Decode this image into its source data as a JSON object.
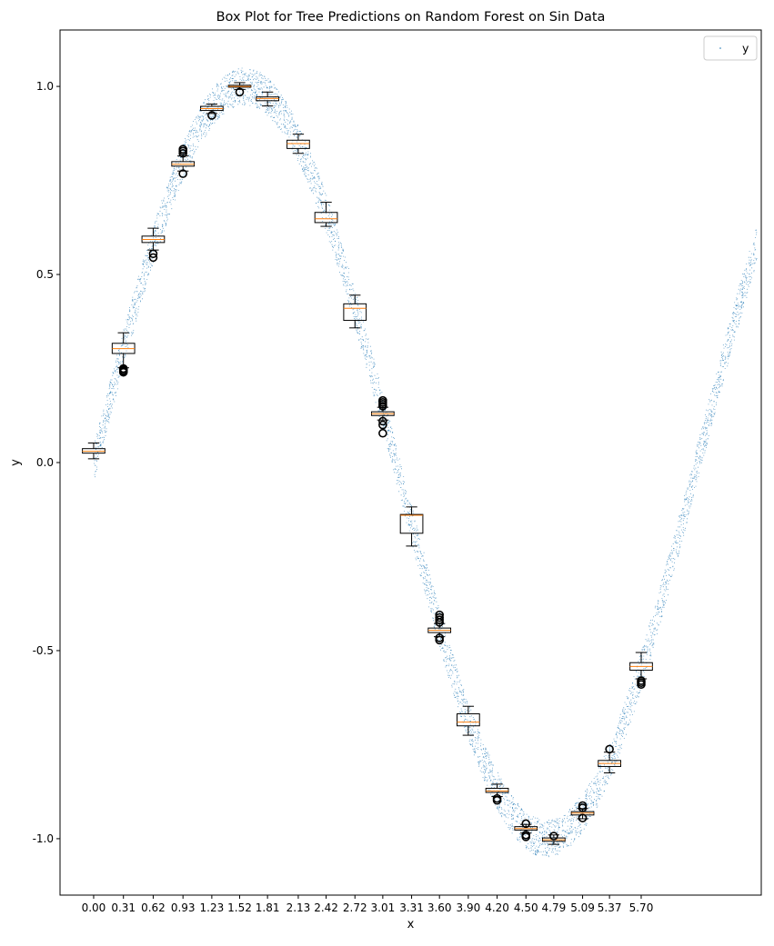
{
  "chart_data": {
    "type": "box",
    "title": "Box Plot for Tree Predictions on Random Forest on Sin Data",
    "xlabel": "x",
    "ylabel": "y",
    "xlim": [
      -0.35,
      6.95
    ],
    "ylim": [
      -1.15,
      1.15
    ],
    "y_ticks": [
      1.0,
      0.5,
      0.0,
      -0.5,
      -1.0
    ],
    "y_tick_labels": [
      "1.0",
      "0.5",
      "0.0",
      "-0.5",
      "-1.0"
    ],
    "x_tick_labels": [
      "0.00",
      "0.31",
      "0.62",
      "0.93",
      "1.23",
      "1.52",
      "1.81",
      "2.13",
      "2.42",
      "2.72",
      "3.01",
      "3.31",
      "3.60",
      "3.90",
      "4.20",
      "4.50",
      "4.79",
      "5.09",
      "5.37",
      "5.70"
    ],
    "grid": false,
    "legend": {
      "position": "top-right",
      "entries": [
        "y"
      ]
    },
    "colors": {
      "scatter": "#1f77b4",
      "median": "#ff7f0e",
      "box": "#000000"
    },
    "scatter_series": {
      "name": "y",
      "function": "sin(x)",
      "x_range": [
        0,
        6.9
      ],
      "noise_band": 0.05,
      "n_points": 5000
    },
    "boxes": [
      {
        "x": 0.0,
        "q1": 0.025,
        "median": 0.03,
        "q3": 0.037,
        "whisker_low": 0.01,
        "whisker_high": 0.052,
        "outliers": []
      },
      {
        "x": 0.31,
        "q1": 0.29,
        "median": 0.303,
        "q3": 0.317,
        "whisker_low": 0.252,
        "whisker_high": 0.345,
        "outliers": [
          0.24,
          0.243,
          0.246,
          0.25
        ]
      },
      {
        "x": 0.62,
        "q1": 0.585,
        "median": 0.593,
        "q3": 0.602,
        "whisker_low": 0.565,
        "whisker_high": 0.623,
        "outliers": [
          0.545,
          0.555
        ]
      },
      {
        "x": 0.93,
        "q1": 0.788,
        "median": 0.793,
        "q3": 0.8,
        "whisker_low": 0.775,
        "whisker_high": 0.815,
        "outliers": [
          0.768,
          0.822,
          0.828,
          0.833
        ]
      },
      {
        "x": 1.23,
        "q1": 0.936,
        "median": 0.941,
        "q3": 0.947,
        "whisker_low": 0.928,
        "whisker_high": 0.953,
        "outliers": [
          0.923
        ]
      },
      {
        "x": 1.52,
        "q1": 0.998,
        "median": 1.0,
        "q3": 1.003,
        "whisker_low": 0.992,
        "whisker_high": 1.01,
        "outliers": [
          0.985
        ]
      },
      {
        "x": 1.81,
        "q1": 0.962,
        "median": 0.968,
        "q3": 0.972,
        "whisker_low": 0.948,
        "whisker_high": 0.985,
        "outliers": []
      },
      {
        "x": 2.13,
        "q1": 0.835,
        "median": 0.848,
        "q3": 0.857,
        "whisker_low": 0.822,
        "whisker_high": 0.873,
        "outliers": []
      },
      {
        "x": 2.42,
        "q1": 0.638,
        "median": 0.648,
        "q3": 0.665,
        "whisker_low": 0.628,
        "whisker_high": 0.692,
        "outliers": []
      },
      {
        "x": 2.72,
        "q1": 0.378,
        "median": 0.41,
        "q3": 0.422,
        "whisker_low": 0.358,
        "whisker_high": 0.445,
        "outliers": []
      },
      {
        "x": 3.01,
        "q1": 0.125,
        "median": 0.13,
        "q3": 0.135,
        "whisker_low": 0.113,
        "whisker_high": 0.147,
        "outliers": [
          0.078,
          0.1,
          0.11,
          0.15,
          0.155,
          0.16,
          0.165
        ]
      },
      {
        "x": 3.31,
        "q1": -0.188,
        "median": -0.14,
        "q3": -0.138,
        "whisker_low": -0.222,
        "whisker_high": -0.118,
        "outliers": []
      },
      {
        "x": 3.6,
        "q1": -0.452,
        "median": -0.446,
        "q3": -0.44,
        "whisker_low": -0.463,
        "whisker_high": -0.428,
        "outliers": [
          -0.472,
          -0.466,
          -0.425,
          -0.418,
          -0.412,
          -0.405
        ]
      },
      {
        "x": 3.9,
        "q1": -0.7,
        "median": -0.69,
        "q3": -0.668,
        "whisker_low": -0.725,
        "whisker_high": -0.648,
        "outliers": []
      },
      {
        "x": 4.2,
        "q1": -0.877,
        "median": -0.873,
        "q3": -0.866,
        "whisker_low": -0.888,
        "whisker_high": -0.855,
        "outliers": [
          -0.893,
          -0.898
        ]
      },
      {
        "x": 4.5,
        "q1": -0.977,
        "median": -0.973,
        "q3": -0.968,
        "whisker_low": -0.985,
        "whisker_high": -0.962,
        "outliers": [
          -0.995,
          -0.99,
          -0.96
        ]
      },
      {
        "x": 4.79,
        "q1": -1.007,
        "median": -1.003,
        "q3": -0.998,
        "whisker_low": -1.015,
        "whisker_high": -0.99,
        "outliers": [
          -0.993
        ]
      },
      {
        "x": 5.09,
        "q1": -0.937,
        "median": -0.932,
        "q3": -0.928,
        "whisker_low": -0.947,
        "whisker_high": -0.92,
        "outliers": [
          -0.945,
          -0.918,
          -0.912
        ]
      },
      {
        "x": 5.37,
        "q1": -0.808,
        "median": -0.8,
        "q3": -0.792,
        "whisker_low": -0.825,
        "whisker_high": -0.77,
        "outliers": [
          -0.762
        ]
      },
      {
        "x": 5.7,
        "q1": -0.552,
        "median": -0.542,
        "q3": -0.532,
        "whisker_low": -0.575,
        "whisker_high": -0.505,
        "outliers": [
          -0.58,
          -0.585,
          -0.59
        ]
      }
    ]
  }
}
